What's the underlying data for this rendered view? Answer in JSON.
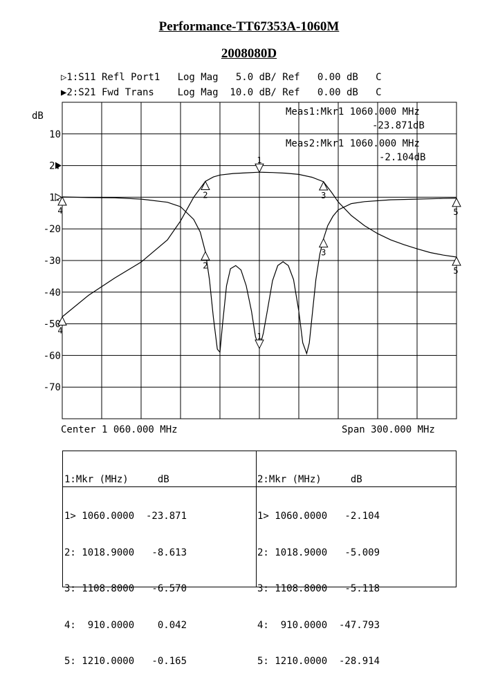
{
  "title": "Performance-TT67353A-1060M",
  "subtitle": "2008080D",
  "header_lines": [
    "▷1:S11 Refl Port1   Log Mag   5.0 dB/ Ref   0.00 dB   C",
    "▶2:S21 Fwd Trans    Log Mag  10.0 dB/ Ref   0.00 dB   C"
  ],
  "meas1": [
    "Meas1:Mkr1 1060.000 MHz",
    "-23.871dB"
  ],
  "meas2": [
    "Meas2:Mkr1 1060.000 MHz",
    "-2.104dB"
  ],
  "footer": {
    "center": "Center 1 060.000 MHz",
    "span": "Span 300.000 MHz"
  },
  "table": {
    "left_header": "1:Mkr (MHz)     dB",
    "right_header": "2:Mkr (MHz)     dB",
    "left_rows": [
      "1> 1060.0000  -23.871",
      "2: 1018.9000   -8.613",
      "3: 1108.8000   -6.570",
      "4:  910.0000    0.042",
      "5: 1210.0000   -0.165"
    ],
    "right_rows": [
      "1> 1060.0000   -2.104",
      "2: 1018.9000   -5.009",
      "3: 1108.8000   -5.118",
      "4:  910.0000  -47.793",
      "5: 1210.0000  -28.914"
    ]
  },
  "chart_data": {
    "type": "line",
    "x_range_mhz": [
      910,
      1210
    ],
    "grid": true,
    "y_unit_label": "dB",
    "y_tick_labels": [
      "10",
      "2:",
      "1:",
      "-20",
      "-30",
      "-40",
      "-50",
      "-60",
      "-70"
    ],
    "series": [
      {
        "name": "S11",
        "ref_div": 3,
        "db_per_div": 5,
        "x": [
          910,
          930,
          950,
          970,
          990,
          1000,
          1010,
          1015,
          1018.9,
          1022,
          1025,
          1028,
          1030,
          1032,
          1035,
          1038,
          1042,
          1046,
          1050,
          1054,
          1057,
          1060,
          1063,
          1066,
          1070,
          1074,
          1078,
          1082,
          1086,
          1090,
          1093,
          1096,
          1098,
          1100,
          1103,
          1106,
          1108.8,
          1112,
          1116,
          1120,
          1130,
          1140,
          1160,
          1180,
          1200,
          1210
        ],
        "y": [
          0.042,
          -0.05,
          -0.1,
          -0.3,
          -0.8,
          -1.5,
          -3.5,
          -5.5,
          -8.613,
          -13,
          -19,
          -24,
          -24.5,
          -20,
          -14,
          -11.3,
          -10.8,
          -11.5,
          -14,
          -18,
          -22,
          -23.871,
          -21.5,
          -18,
          -13.2,
          -10.8,
          -10.2,
          -10.8,
          -13,
          -18,
          -23,
          -24.7,
          -23,
          -19,
          -13,
          -9,
          -6.57,
          -4.5,
          -3,
          -2,
          -1,
          -0.7,
          -0.4,
          -0.3,
          -0.2,
          -0.165
        ]
      },
      {
        "name": "S21",
        "ref_div": 2,
        "db_per_div": 10,
        "x": [
          910,
          930,
          950,
          970,
          990,
          1000,
          1010,
          1018.9,
          1025,
          1030,
          1040,
          1050,
          1060,
          1070,
          1080,
          1090,
          1100,
          1108.8,
          1115,
          1120,
          1130,
          1140,
          1150,
          1160,
          1170,
          1180,
          1190,
          1200,
          1210
        ],
        "y": [
          -47.793,
          -41,
          -35.5,
          -30.5,
          -23.5,
          -17.5,
          -10,
          -5.009,
          -3.6,
          -3,
          -2.5,
          -2.3,
          -2.104,
          -2.2,
          -2.4,
          -2.8,
          -3.7,
          -5.118,
          -8.5,
          -11.5,
          -15.8,
          -19,
          -21.5,
          -23.5,
          -25,
          -26.3,
          -27.5,
          -28.3,
          -28.914
        ]
      }
    ],
    "markers": [
      {
        "trace": "S11",
        "id": "1",
        "x": 1060,
        "y": -23.871
      },
      {
        "trace": "S11",
        "id": "2",
        "x": 1018.9,
        "y": -8.613
      },
      {
        "trace": "S11",
        "id": "3",
        "x": 1108.8,
        "y": -6.57
      },
      {
        "trace": "S11",
        "id": "4",
        "x": 910,
        "y": 0.042
      },
      {
        "trace": "S11",
        "id": "5",
        "x": 1210,
        "y": -0.165
      },
      {
        "trace": "S21",
        "id": "1",
        "x": 1060,
        "y": -2.104
      },
      {
        "trace": "S21",
        "id": "2",
        "x": 1018.9,
        "y": -5.009
      },
      {
        "trace": "S21",
        "id": "3",
        "x": 1108.8,
        "y": -5.118
      },
      {
        "trace": "S21",
        "id": "4",
        "x": 910,
        "y": -47.793
      },
      {
        "trace": "S21",
        "id": "5",
        "x": 1210,
        "y": -28.914
      }
    ]
  }
}
